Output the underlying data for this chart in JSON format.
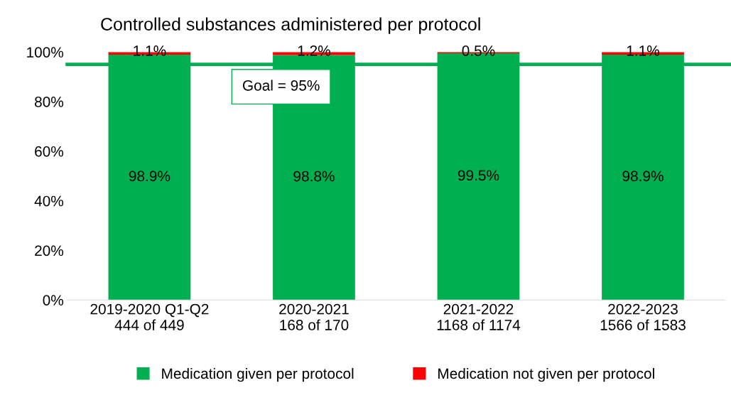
{
  "chart_data": {
    "type": "bar",
    "title": "Controlled substances administered per protocol",
    "categories": [
      "2019-2020 Q1-Q2\n444 of 449",
      "2020-2021\n168 of 170",
      "2021-2022\n1168 of 1174",
      "2022-2023\n1566 of 1583"
    ],
    "stacked": true,
    "series": [
      {
        "name": "Medication given per protocol",
        "color": "#00b050",
        "values": [
          98.9,
          98.8,
          99.5,
          98.9
        ],
        "value_labels": [
          "98.9%",
          "98.8%",
          "99.5%",
          "98.9%"
        ]
      },
      {
        "name": "Medication not given per protocol",
        "color": "#ff0000",
        "values": [
          1.1,
          1.2,
          0.5,
          1.1
        ],
        "value_labels": [
          "1.1%",
          "1.2%",
          "0.5%",
          "1.1%"
        ]
      }
    ],
    "ylim": [
      0,
      100
    ],
    "yticks": [
      {
        "value": 0,
        "label": "0%"
      },
      {
        "value": 20,
        "label": "20%"
      },
      {
        "value": 40,
        "label": "40%"
      },
      {
        "value": 60,
        "label": "60%"
      },
      {
        "value": 80,
        "label": "80%"
      },
      {
        "value": 100,
        "label": "100%"
      }
    ],
    "ref_lines": [
      {
        "axis": "y",
        "value": 95,
        "label": "Goal = 95%",
        "color": "#00b050"
      }
    ],
    "grid": false,
    "legend": "bottom"
  }
}
